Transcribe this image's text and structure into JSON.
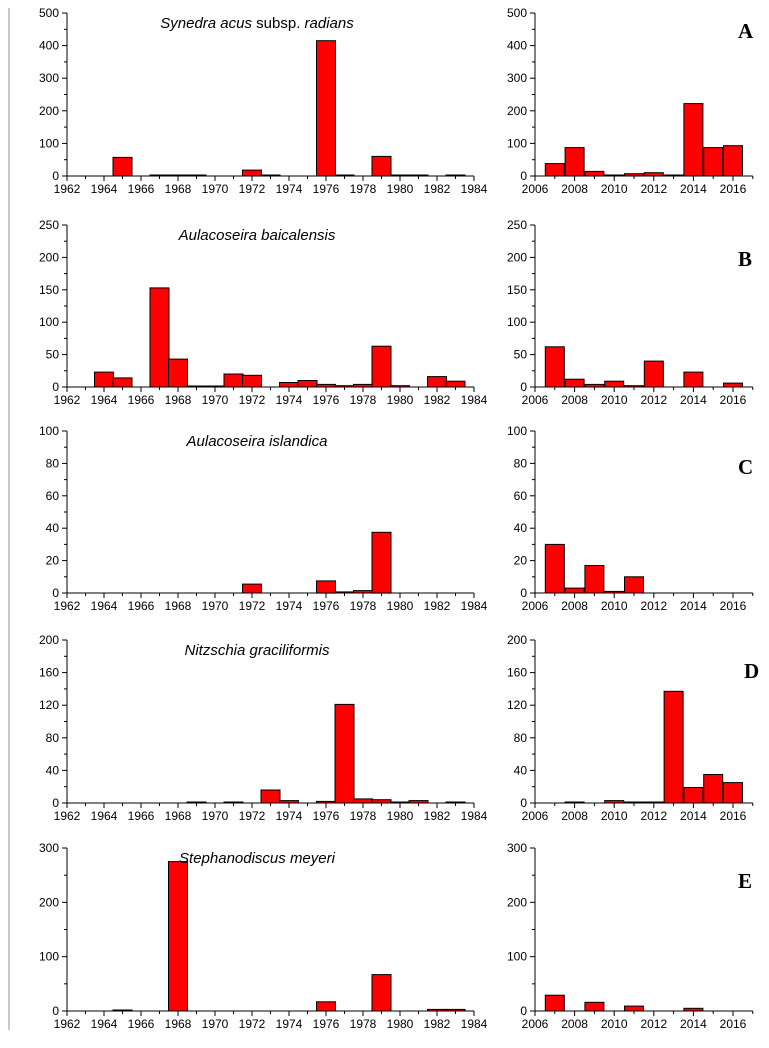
{
  "chart_data": [
    {
      "type": "bar",
      "panel": "A",
      "title_parts": [
        "Synedra acus",
        " subsp. ",
        "radians"
      ],
      "left": {
        "x": [
          1965,
          1967,
          1968,
          1969,
          1972,
          1973,
          1976,
          1977,
          1979,
          1980,
          1981,
          1983
        ],
        "values": [
          57,
          2,
          3,
          2,
          18,
          2,
          415,
          2,
          60,
          2,
          2,
          2
        ],
        "ylim": [
          0,
          500
        ],
        "yticks": [
          0,
          100,
          200,
          300,
          400,
          500
        ],
        "xlim": [
          1962,
          1984
        ],
        "xtick_labels": [
          "1962",
          "1964",
          "1966",
          "1968",
          "1970",
          "1972",
          "1974",
          "1976",
          "1978",
          "1980",
          "1982",
          "1984"
        ]
      },
      "right": {
        "x": [
          2007,
          2008,
          2009,
          2010,
          2011,
          2012,
          2013,
          2014,
          2015,
          2016
        ],
        "values": [
          38,
          87,
          14,
          2,
          7,
          10,
          2,
          222,
          87,
          93
        ],
        "ylim": [
          0,
          500
        ],
        "yticks": [
          0,
          100,
          200,
          300,
          400,
          500
        ],
        "xlim": [
          2006,
          2017
        ],
        "xtick_labels": [
          "2006",
          "2008",
          "2010",
          "2012",
          "2014",
          "2016"
        ]
      }
    },
    {
      "type": "bar",
      "panel": "B",
      "title_parts": [
        "Aulacoseira baicalensis"
      ],
      "left": {
        "x": [
          1964,
          1965,
          1967,
          1968,
          1969,
          1970,
          1971,
          1972,
          1974,
          1975,
          1976,
          1977,
          1978,
          1979,
          1980,
          1982,
          1983
        ],
        "values": [
          23,
          14,
          153,
          43,
          1,
          1,
          20,
          18,
          7,
          10,
          4,
          2,
          4,
          63,
          2,
          16,
          9
        ],
        "ylim": [
          0,
          250
        ],
        "yticks": [
          0,
          50,
          100,
          150,
          200,
          250
        ],
        "xlim": [
          1962,
          1984
        ],
        "xtick_labels": [
          "1962",
          "1964",
          "1966",
          "1968",
          "1970",
          "1972",
          "1974",
          "1976",
          "1978",
          "1980",
          "1982",
          "1984"
        ]
      },
      "right": {
        "x": [
          2007,
          2008,
          2009,
          2010,
          2011,
          2012,
          2014,
          2016
        ],
        "values": [
          62,
          12,
          4,
          9,
          2,
          40,
          23,
          6
        ],
        "ylim": [
          0,
          250
        ],
        "yticks": [
          0,
          50,
          100,
          150,
          200,
          250
        ],
        "xlim": [
          2006,
          2017
        ],
        "xtick_labels": [
          "2006",
          "2008",
          "2010",
          "2012",
          "2014",
          "2016"
        ]
      }
    },
    {
      "type": "bar",
      "panel": "C",
      "title_parts": [
        "Aulacoseira islandica"
      ],
      "left": {
        "x": [
          1972,
          1976,
          1977,
          1978,
          1979
        ],
        "values": [
          5.5,
          7.5,
          0.7,
          1.5,
          37.5
        ],
        "ylim": [
          0,
          100
        ],
        "yticks": [
          0,
          20,
          40,
          60,
          80,
          100
        ],
        "xlim": [
          1962,
          1984
        ],
        "xtick_labels": [
          "1962",
          "1964",
          "1966",
          "1968",
          "1970",
          "1972",
          "1974",
          "1976",
          "1978",
          "1980",
          "1982",
          "1984"
        ]
      },
      "right": {
        "x": [
          2007,
          2008,
          2009,
          2010,
          2011
        ],
        "values": [
          30,
          3,
          17,
          1,
          10
        ],
        "ylim": [
          0,
          100
        ],
        "yticks": [
          0,
          20,
          40,
          60,
          80,
          100
        ],
        "xlim": [
          2006,
          2017
        ],
        "xtick_labels": [
          "2006",
          "2008",
          "2010",
          "2012",
          "2014",
          "2016"
        ]
      }
    },
    {
      "type": "bar",
      "panel": "D",
      "title_parts": [
        "Nitzschia graciliformis"
      ],
      "left": {
        "x": [
          1969,
          1971,
          1973,
          1974,
          1976,
          1977,
          1978,
          1979,
          1980,
          1981,
          1983
        ],
        "values": [
          1,
          1,
          16,
          3,
          2,
          121,
          5,
          4,
          1,
          3,
          1
        ],
        "ylim": [
          0,
          200
        ],
        "yticks": [
          0,
          40,
          80,
          120,
          160,
          200
        ],
        "xlim": [
          1962,
          1984
        ],
        "xtick_labels": [
          "1962",
          "1964",
          "1966",
          "1968",
          "1970",
          "1972",
          "1974",
          "1976",
          "1978",
          "1980",
          "1982",
          "1984"
        ]
      },
      "right": {
        "x": [
          2008,
          2010,
          2011,
          2012,
          2013,
          2014,
          2015,
          2016
        ],
        "values": [
          1,
          3,
          1,
          1,
          137,
          19,
          35,
          25
        ],
        "ylim": [
          0,
          200
        ],
        "yticks": [
          0,
          40,
          80,
          120,
          160,
          200
        ],
        "xlim": [
          2006,
          2017
        ],
        "xtick_labels": [
          "2006",
          "2008",
          "2010",
          "2012",
          "2014",
          "2016"
        ]
      }
    },
    {
      "type": "bar",
      "panel": "E",
      "title_parts": [
        "Stephanodiscus meyeri"
      ],
      "left": {
        "x": [
          1965,
          1968,
          1976,
          1979,
          1982,
          1983
        ],
        "values": [
          1,
          275,
          17,
          67,
          3,
          3
        ],
        "ylim": [
          0,
          300
        ],
        "yticks": [
          0,
          100,
          200,
          300
        ],
        "xlim": [
          1962,
          1984
        ],
        "xtick_labels": [
          "1962",
          "1964",
          "1966",
          "1968",
          "1970",
          "1972",
          "1974",
          "1976",
          "1978",
          "1980",
          "1982",
          "1984"
        ]
      },
      "right": {
        "x": [
          2007,
          2009,
          2011,
          2014
        ],
        "values": [
          29,
          16,
          9,
          5
        ],
        "ylim": [
          0,
          300
        ],
        "yticks": [
          0,
          100,
          200,
          300
        ],
        "xlim": [
          2006,
          2017
        ],
        "xtick_labels": [
          "2006",
          "2008",
          "2010",
          "2012",
          "2014",
          "2016"
        ]
      }
    }
  ]
}
